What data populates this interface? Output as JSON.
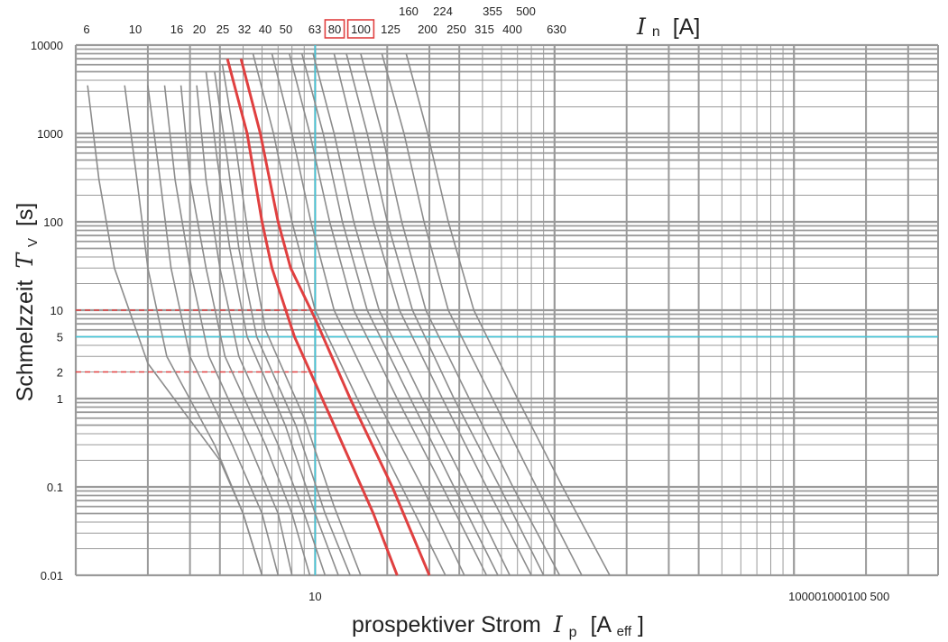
{
  "chart_data": {
    "type": "line",
    "title": "",
    "xlabel": "prospektiver Strom",
    "xlabel_symbol": "I",
    "xlabel_sub": "p",
    "xlabel_unit_open": "[A",
    "xlabel_unit_sub": "eff",
    "xlabel_unit_close": "]",
    "ylabel": "Schmelzzeit",
    "ylabel_symbol": "T",
    "ylabel_sub": "V",
    "ylabel_unit": "[s]",
    "top_label_symbol": "I",
    "top_label_sub": "n",
    "top_label_unit": "[A]",
    "y_scale": "log",
    "x_scale": "log",
    "ylim": [
      0.01,
      10000
    ],
    "xlim": [
      1,
      4000
    ],
    "grid": true,
    "y_tick_labels": [
      "10000",
      "1000",
      "100",
      "10",
      "5",
      "2",
      "1",
      "0.1",
      "0.01"
    ],
    "y_tick_values": [
      10000,
      1000,
      100,
      10,
      5,
      2,
      1,
      0.1,
      0.01
    ],
    "x_tick_labels": [
      "10",
      "100001000100 500"
    ],
    "x_tick_values": [
      10,
      1000
    ],
    "rated_currents_row1": [
      "6",
      "10",
      "16",
      "20",
      "25",
      "32",
      "40",
      "50",
      "63",
      "80",
      "100",
      "125",
      "200",
      "250",
      "315",
      "400",
      "630"
    ],
    "rated_currents_row2": [
      "160",
      "224",
      "355",
      "500"
    ],
    "highlighted_ratings": [
      "80",
      "100"
    ],
    "colors": {
      "highlight": "#e04040",
      "reference": "#3fc8dc",
      "grid": "#9a9a9a",
      "curves": "#8c8c8c"
    },
    "reference_lines": {
      "time": 5,
      "current": 10
    },
    "red_dashed_times": [
      10,
      2
    ],
    "series": [
      {
        "label": "6",
        "highlight": false,
        "points": [
          [
            1.12,
            3500
          ],
          [
            1.25,
            300
          ],
          [
            1.45,
            30
          ],
          [
            2.0,
            2.5
          ],
          [
            4.0,
            0.2
          ],
          [
            5.0,
            0.05
          ],
          [
            6.0,
            0.01
          ]
        ]
      },
      {
        "label": "10",
        "highlight": false,
        "points": [
          [
            1.6,
            3500
          ],
          [
            1.8,
            300
          ],
          [
            2.0,
            30
          ],
          [
            2.4,
            3
          ],
          [
            3.8,
            0.3
          ],
          [
            5.0,
            0.05
          ],
          [
            6.0,
            0.01
          ]
        ]
      },
      {
        "label": "16",
        "highlight": false,
        "points": [
          [
            2.0,
            3500
          ],
          [
            2.25,
            300
          ],
          [
            2.5,
            30
          ],
          [
            3.0,
            3
          ],
          [
            4.5,
            0.3
          ],
          [
            6.0,
            0.05
          ],
          [
            7.0,
            0.01
          ]
        ]
      },
      {
        "label": "20",
        "highlight": false,
        "points": [
          [
            2.35,
            3500
          ],
          [
            2.6,
            300
          ],
          [
            3.0,
            30
          ],
          [
            3.6,
            3
          ],
          [
            5.3,
            0.3
          ],
          [
            7.0,
            0.05
          ],
          [
            8.0,
            0.01
          ]
        ]
      },
      {
        "label": "25",
        "highlight": false,
        "points": [
          [
            2.75,
            3500
          ],
          [
            3.0,
            300
          ],
          [
            3.5,
            30
          ],
          [
            4.2,
            3
          ],
          [
            6.2,
            0.3
          ],
          [
            8.0,
            0.05
          ],
          [
            9.5,
            0.01
          ]
        ]
      },
      {
        "label": "32",
        "highlight": false,
        "points": [
          [
            3.2,
            3500
          ],
          [
            3.5,
            300
          ],
          [
            4.0,
            30
          ],
          [
            4.8,
            3
          ],
          [
            7.0,
            0.3
          ],
          [
            9.0,
            0.05
          ],
          [
            11.0,
            0.01
          ]
        ]
      },
      {
        "label": "40",
        "highlight": false,
        "points": [
          [
            3.5,
            5000
          ],
          [
            3.9,
            500
          ],
          [
            4.4,
            50
          ],
          [
            5.2,
            5
          ],
          [
            7.5,
            0.5
          ],
          [
            10.0,
            0.05
          ],
          [
            12.5,
            0.01
          ]
        ]
      },
      {
        "label": "50",
        "highlight": false,
        "points": [
          [
            3.8,
            5000
          ],
          [
            4.3,
            500
          ],
          [
            4.8,
            50
          ],
          [
            5.7,
            5
          ],
          [
            8.3,
            0.5
          ],
          [
            11.0,
            0.05
          ],
          [
            14.0,
            0.01
          ]
        ]
      },
      {
        "label": "63",
        "highlight": false,
        "points": [
          [
            4.1,
            6000
          ],
          [
            4.7,
            600
          ],
          [
            5.3,
            60
          ],
          [
            6.2,
            6
          ],
          [
            9.0,
            0.6
          ],
          [
            12.0,
            0.06
          ],
          [
            15.5,
            0.01
          ]
        ]
      },
      {
        "label": "80",
        "highlight": true,
        "points": [
          [
            4.3,
            7000
          ],
          [
            5.2,
            1000
          ],
          [
            6.0,
            100
          ],
          [
            6.6,
            30
          ],
          [
            8.2,
            5
          ],
          [
            12.0,
            0.5
          ],
          [
            17.5,
            0.05
          ],
          [
            22.0,
            0.01
          ]
        ]
      },
      {
        "label": "100",
        "highlight": true,
        "points": [
          [
            4.9,
            7000
          ],
          [
            5.9,
            1000
          ],
          [
            7.0,
            100
          ],
          [
            7.9,
            30
          ],
          [
            10.0,
            8
          ],
          [
            14.0,
            1
          ],
          [
            21.0,
            0.1
          ],
          [
            30.0,
            0.01
          ]
        ]
      },
      {
        "label": "125",
        "highlight": false,
        "points": [
          [
            5.5,
            8000
          ],
          [
            6.7,
            1000
          ],
          [
            8.0,
            100
          ],
          [
            10.0,
            10
          ],
          [
            15.0,
            1
          ],
          [
            23.0,
            0.1
          ],
          [
            35.0,
            0.01
          ]
        ]
      },
      {
        "label": "160",
        "highlight": false,
        "points": [
          [
            6.6,
            8000
          ],
          [
            8.0,
            1000
          ],
          [
            9.6,
            100
          ],
          [
            12.0,
            10
          ],
          [
            18.0,
            1
          ],
          [
            28.0,
            0.1
          ],
          [
            42.0,
            0.01
          ]
        ]
      },
      {
        "label": "200",
        "highlight": false,
        "points": [
          [
            7.8,
            8000
          ],
          [
            9.5,
            1000
          ],
          [
            11.5,
            100
          ],
          [
            14.5,
            10
          ],
          [
            22.0,
            1
          ],
          [
            34.0,
            0.1
          ],
          [
            52.0,
            0.01
          ]
        ]
      },
      {
        "label": "224",
        "highlight": false,
        "points": [
          [
            8.8,
            8000
          ],
          [
            10.8,
            1000
          ],
          [
            13.0,
            100
          ],
          [
            16.5,
            10
          ],
          [
            25.0,
            1
          ],
          [
            38.0,
            0.1
          ],
          [
            58.0,
            0.01
          ]
        ]
      },
      {
        "label": "250",
        "highlight": false,
        "points": [
          [
            9.8,
            8000
          ],
          [
            12.0,
            1000
          ],
          [
            14.5,
            100
          ],
          [
            18.5,
            10
          ],
          [
            28.0,
            1
          ],
          [
            43.0,
            0.1
          ],
          [
            65.0,
            0.01
          ]
        ]
      },
      {
        "label": "315",
        "highlight": false,
        "points": [
          [
            12.0,
            8000
          ],
          [
            14.5,
            1000
          ],
          [
            17.5,
            100
          ],
          [
            22.5,
            10
          ],
          [
            34.0,
            1
          ],
          [
            52.0,
            0.1
          ],
          [
            80.0,
            0.01
          ]
        ]
      },
      {
        "label": "355",
        "highlight": false,
        "points": [
          [
            13.5,
            8000
          ],
          [
            16.5,
            1000
          ],
          [
            20.0,
            100
          ],
          [
            25.5,
            10
          ],
          [
            38.0,
            1
          ],
          [
            59.0,
            0.1
          ],
          [
            90.0,
            0.01
          ]
        ]
      },
      {
        "label": "400",
        "highlight": false,
        "points": [
          [
            15.5,
            8000
          ],
          [
            19.0,
            1000
          ],
          [
            23.0,
            100
          ],
          [
            29.0,
            10
          ],
          [
            44.0,
            1
          ],
          [
            67.0,
            0.1
          ],
          [
            105.0,
            0.01
          ]
        ]
      },
      {
        "label": "500",
        "highlight": false,
        "points": [
          [
            19.0,
            8000
          ],
          [
            23.5,
            1000
          ],
          [
            28.5,
            100
          ],
          [
            36.0,
            10
          ],
          [
            55.0,
            1
          ],
          [
            84.0,
            0.1
          ],
          [
            130.0,
            0.01
          ]
        ]
      },
      {
        "label": "630",
        "highlight": false,
        "points": [
          [
            24.0,
            8000
          ],
          [
            29.5,
            1000
          ],
          [
            36.0,
            100
          ],
          [
            46.0,
            10
          ],
          [
            70.0,
            1
          ],
          [
            108.0,
            0.1
          ],
          [
            170.0,
            0.01
          ]
        ]
      }
    ]
  }
}
